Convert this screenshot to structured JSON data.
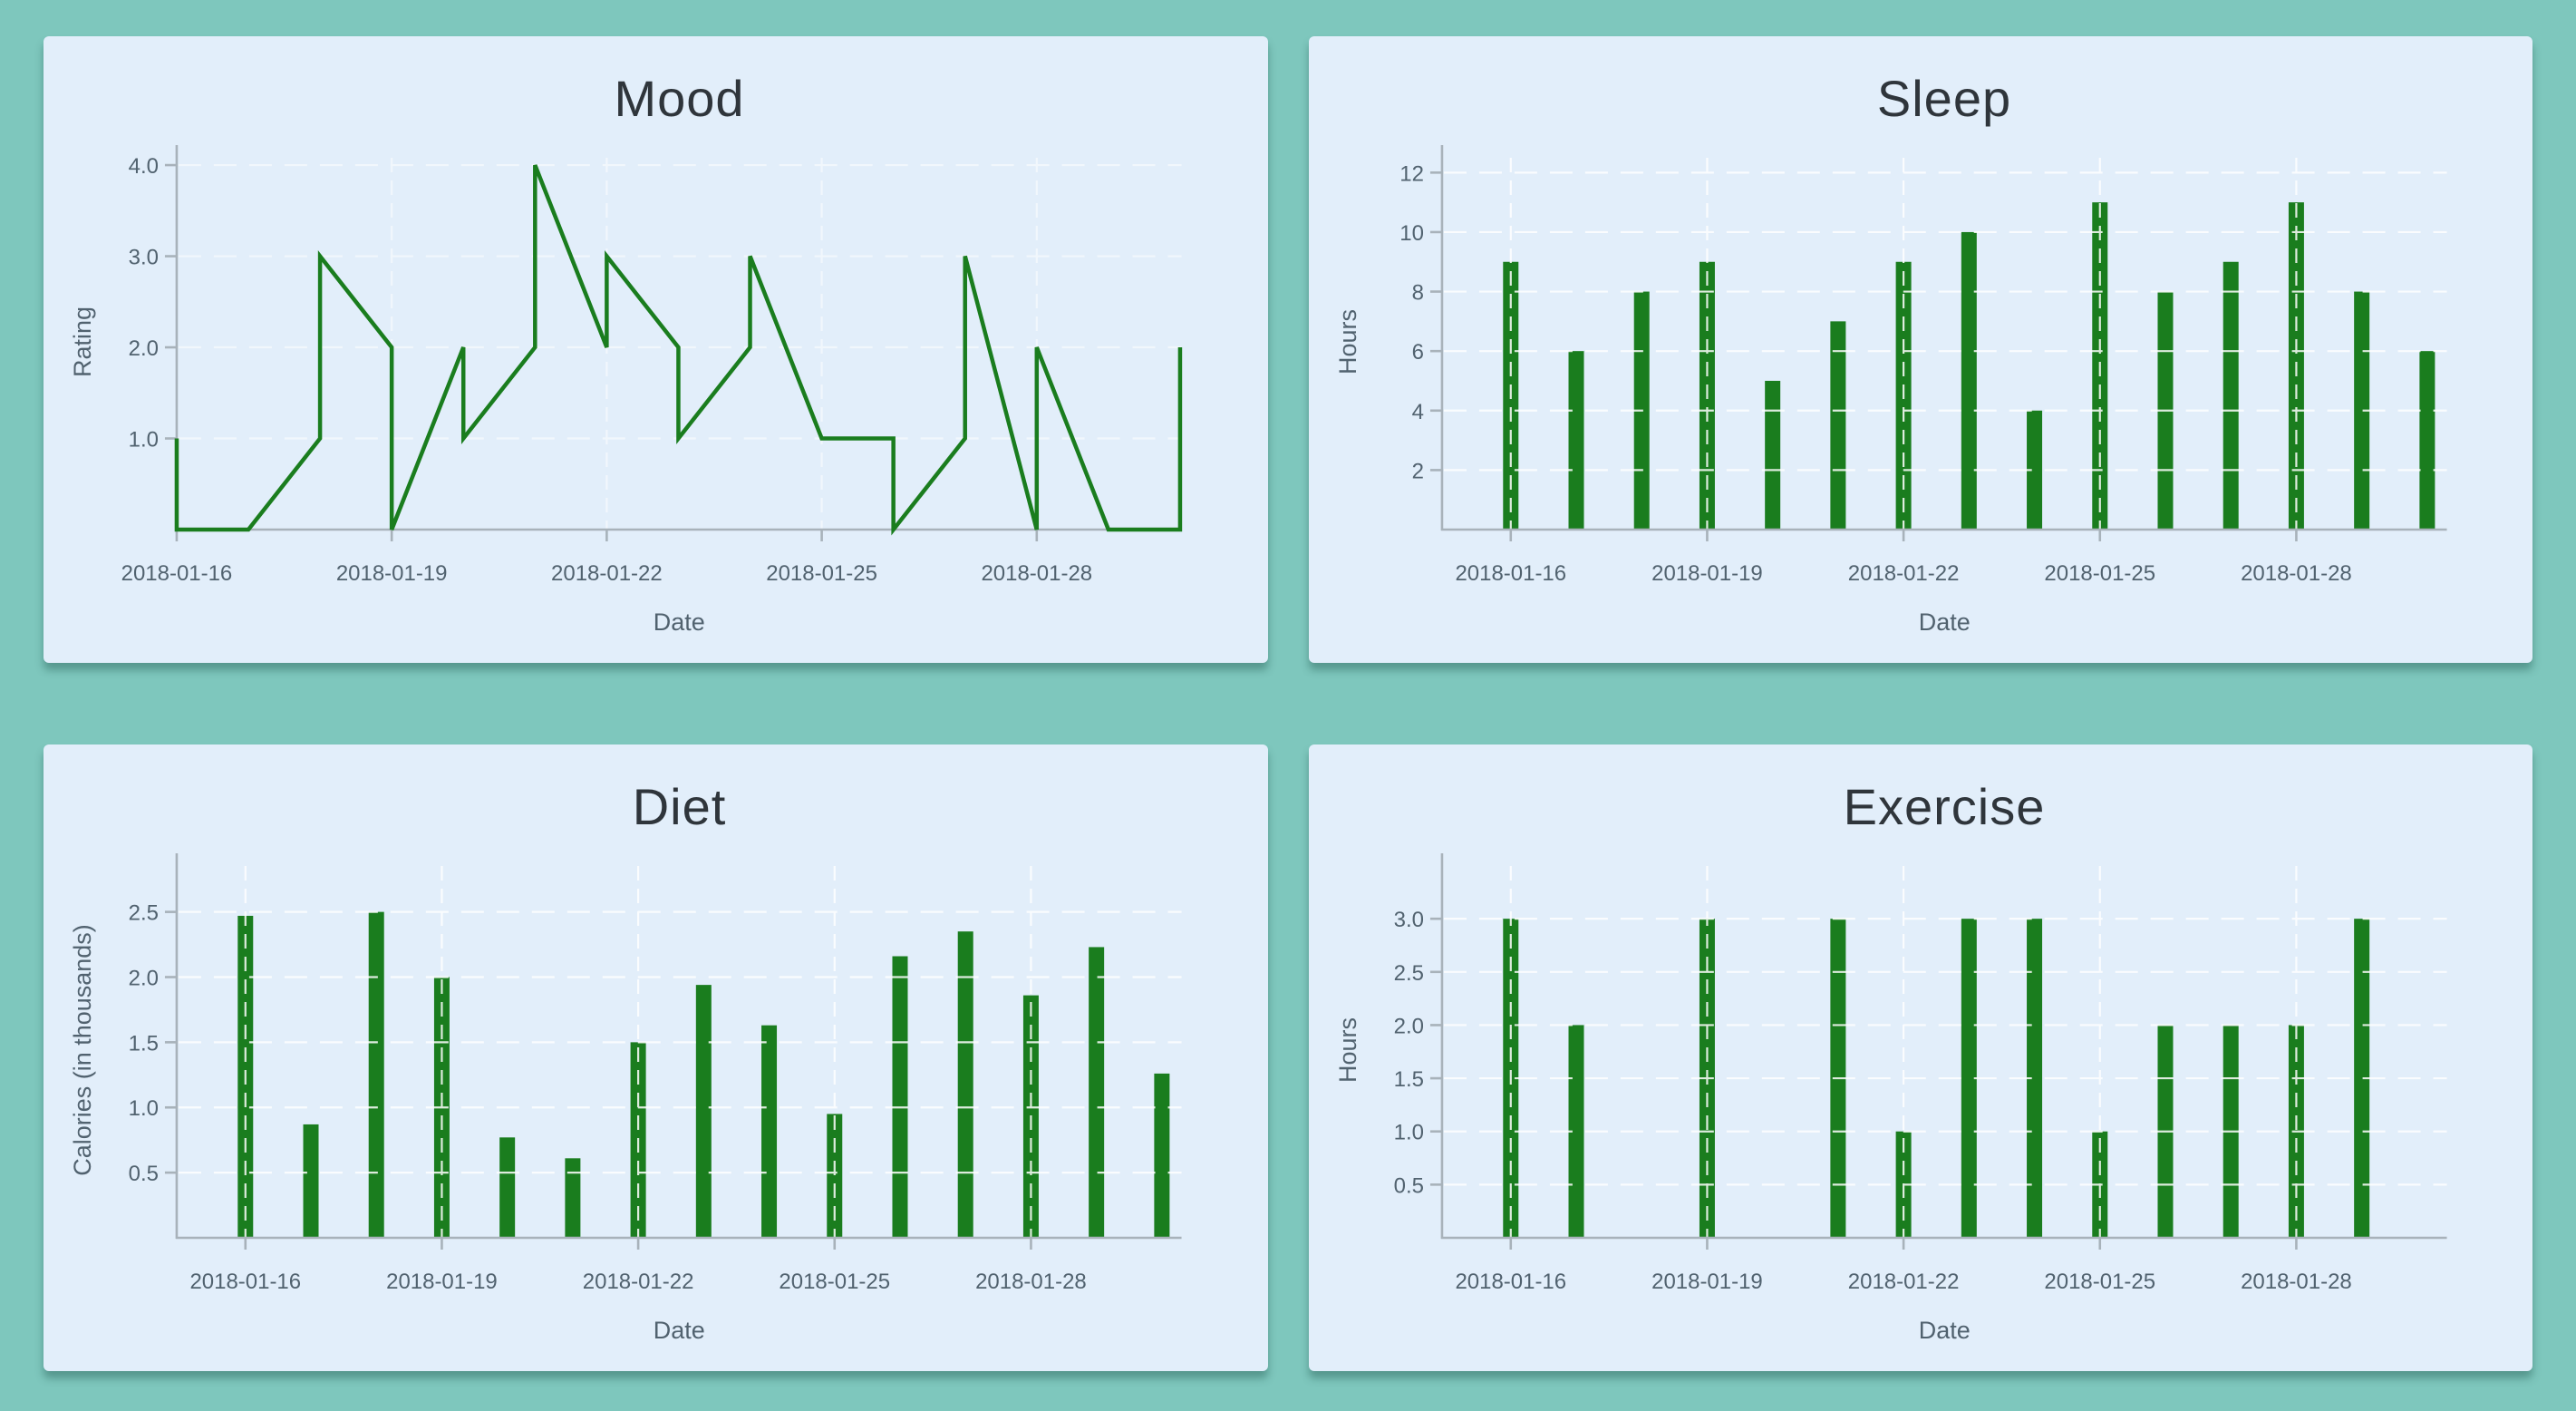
{
  "colors": {
    "background_teal": "#7ec7bd",
    "panel_blue": "#e2eefa",
    "series_green": "#1a7d1e",
    "axis_gray": "#a8b2ba",
    "label_gray": "#51626f",
    "title_dark": "#2f353b",
    "gridline_white": "#ffffff"
  },
  "chart_data": [
    {
      "type": "line",
      "title": "Mood",
      "xlabel": "Date",
      "ylabel": "Rating",
      "categories": [
        "2018-01-16",
        "2018-01-17",
        "2018-01-18",
        "2018-01-19",
        "2018-01-20",
        "2018-01-21",
        "2018-01-22",
        "2018-01-23",
        "2018-01-24",
        "2018-01-25",
        "2018-01-26",
        "2018-01-27",
        "2018-01-28",
        "2018-01-29",
        "2018-01-30"
      ],
      "x_tick_days": [
        0,
        3,
        6,
        9,
        12
      ],
      "x_tick_labels": [
        "2018-01-16",
        "2018-01-19",
        "2018-01-22",
        "2018-01-25",
        "2018-01-28"
      ],
      "ytick_values": [
        1,
        2,
        3,
        4
      ],
      "ytick_labels": [
        "1.0",
        "2.0",
        "3.0",
        "4.0"
      ],
      "ylim": [
        0,
        4.12
      ],
      "x_domain": [
        0,
        14.02
      ],
      "grid": true,
      "legend": "none",
      "points": [
        [
          0,
          1
        ],
        [
          0,
          0
        ],
        [
          1,
          0
        ],
        [
          2,
          1
        ],
        [
          2,
          3
        ],
        [
          3,
          2
        ],
        [
          3,
          0
        ],
        [
          4,
          2
        ],
        [
          4,
          1
        ],
        [
          5,
          2
        ],
        [
          5,
          4
        ],
        [
          6,
          2
        ],
        [
          6,
          3
        ],
        [
          7,
          2
        ],
        [
          7,
          1
        ],
        [
          8,
          2
        ],
        [
          8,
          3
        ],
        [
          9,
          1
        ],
        [
          10,
          1
        ],
        [
          10,
          0
        ],
        [
          11,
          1
        ],
        [
          11,
          3
        ],
        [
          12,
          0
        ],
        [
          12,
          2
        ],
        [
          13,
          0
        ],
        [
          14,
          0
        ],
        [
          14,
          2
        ]
      ]
    },
    {
      "type": "bar",
      "title": "Sleep",
      "xlabel": "Date",
      "ylabel": "Hours",
      "categories": [
        "2018-01-16",
        "2018-01-17",
        "2018-01-18",
        "2018-01-19",
        "2018-01-20",
        "2018-01-21",
        "2018-01-22",
        "2018-01-23",
        "2018-01-24",
        "2018-01-25",
        "2018-01-26",
        "2018-01-27",
        "2018-01-28",
        "2018-01-29",
        "2018-01-30"
      ],
      "values": [
        9,
        6,
        8,
        9,
        5,
        7,
        9,
        10,
        4,
        11,
        8,
        9,
        11,
        8,
        6
      ],
      "x_tick_days": [
        0,
        3,
        6,
        9,
        12
      ],
      "x_tick_labels": [
        "2018-01-16",
        "2018-01-19",
        "2018-01-22",
        "2018-01-25",
        "2018-01-28"
      ],
      "ytick_values": [
        2,
        4,
        6,
        8,
        10,
        12
      ],
      "ytick_labels": [
        "2",
        "4",
        "6",
        "8",
        "10",
        "12"
      ],
      "ylim": [
        0,
        12.62
      ],
      "x_domain": [
        -1.05,
        14.3
      ],
      "grid": true,
      "legend": "none"
    },
    {
      "type": "bar",
      "title": "Diet",
      "xlabel": "Date",
      "ylabel": "Calories (in thousands)",
      "categories": [
        "2018-01-16",
        "2018-01-17",
        "2018-01-18",
        "2018-01-19",
        "2018-01-20",
        "2018-01-21",
        "2018-01-22",
        "2018-01-23",
        "2018-01-24",
        "2018-01-25",
        "2018-01-26",
        "2018-01-27",
        "2018-01-28",
        "2018-01-29",
        "2018-01-30"
      ],
      "values": [
        2.47,
        0.87,
        2.5,
        2.0,
        0.77,
        0.61,
        1.5,
        1.94,
        1.63,
        0.95,
        2.16,
        2.35,
        1.86,
        2.23,
        1.26
      ],
      "x_tick_days": [
        0,
        3,
        6,
        9,
        12
      ],
      "x_tick_labels": [
        "2018-01-16",
        "2018-01-19",
        "2018-01-22",
        "2018-01-25",
        "2018-01-28"
      ],
      "ytick_values": [
        0.5,
        1.0,
        1.5,
        2.0,
        2.5
      ],
      "ytick_labels": [
        "0.5",
        "1.0",
        "1.5",
        "2.0",
        "2.5"
      ],
      "ylim": [
        0,
        2.88
      ],
      "x_domain": [
        -1.05,
        14.3
      ],
      "grid": true,
      "legend": "none"
    },
    {
      "type": "bar",
      "title": "Exercise",
      "xlabel": "Date",
      "ylabel": "Hours",
      "categories": [
        "2018-01-16",
        "2018-01-17",
        "2018-01-18",
        "2018-01-19",
        "2018-01-20",
        "2018-01-21",
        "2018-01-22",
        "2018-01-23",
        "2018-01-24",
        "2018-01-25",
        "2018-01-26",
        "2018-01-27",
        "2018-01-28",
        "2018-01-29",
        "2018-01-30"
      ],
      "values": [
        3,
        2,
        0,
        3,
        0,
        3,
        1,
        3,
        3,
        1,
        2,
        2,
        2,
        3,
        0
      ],
      "x_tick_days": [
        0,
        3,
        6,
        9,
        12
      ],
      "x_tick_labels": [
        "2018-01-16",
        "2018-01-19",
        "2018-01-22",
        "2018-01-25",
        "2018-01-28"
      ],
      "ytick_values": [
        0.5,
        1.0,
        1.5,
        2.0,
        2.5,
        3.0
      ],
      "ytick_labels": [
        "0.5",
        "1.0",
        "1.5",
        "2.0",
        "2.5",
        "3.0"
      ],
      "ylim": [
        0,
        3.53
      ],
      "x_domain": [
        -1.05,
        14.3
      ],
      "grid": true,
      "legend": "none"
    }
  ]
}
